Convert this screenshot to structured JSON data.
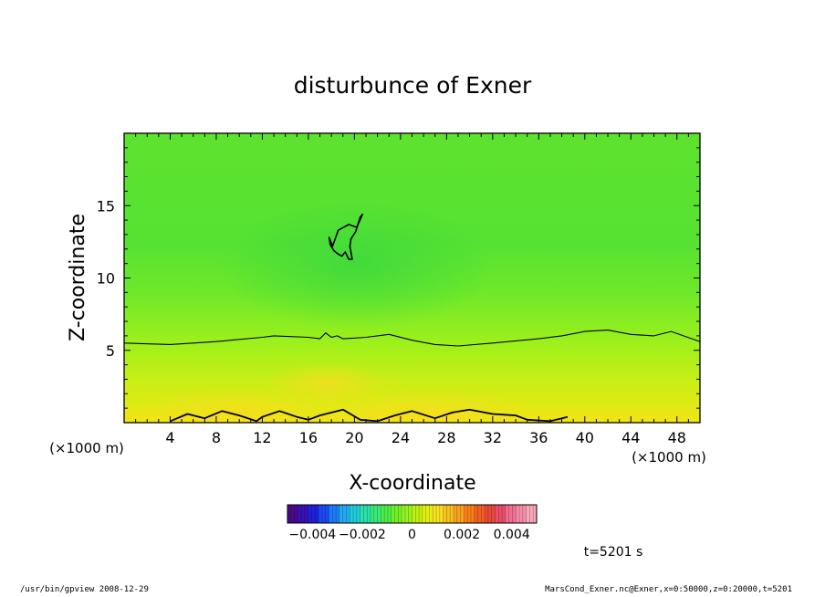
{
  "chart_data": {
    "type": "heatmap",
    "title": "disturbunce of Exner",
    "xlabel": "X-coordinate",
    "ylabel": "Z-coordinate",
    "x_unit_left": "(×1000 m)",
    "x_unit_right": "(×1000 m)",
    "xlim": [
      0,
      50
    ],
    "ylim": [
      0,
      20
    ],
    "xticks": [
      4,
      8,
      12,
      16,
      20,
      24,
      28,
      32,
      36,
      40,
      44,
      48
    ],
    "yticks": [
      5,
      10,
      15
    ],
    "contour_levels": [
      0,
      0.001,
      0.002
    ],
    "contour_mid": {
      "x": [
        0,
        4,
        8,
        12,
        13,
        16,
        17,
        17.5,
        18,
        18.5,
        19,
        21,
        23,
        25,
        27,
        29,
        32,
        36,
        38,
        40,
        42,
        44,
        46,
        47.5,
        50
      ],
      "z": [
        5.5,
        5.4,
        5.6,
        5.9,
        6.0,
        5.9,
        5.8,
        6.2,
        5.9,
        6.0,
        5.8,
        5.9,
        6.1,
        5.7,
        5.4,
        5.3,
        5.5,
        5.8,
        6.0,
        6.3,
        6.4,
        6.1,
        6.0,
        6.3,
        5.6
      ]
    },
    "contour_closed": {
      "x": [
        18.1,
        18.6,
        19.5,
        20.2,
        20.7,
        20.5,
        20.1,
        19.7,
        19.6,
        19.8,
        19.5,
        19.2,
        18.9,
        18.5,
        18.2,
        17.9,
        17.8,
        18.1
      ],
      "z": [
        12.2,
        13.3,
        13.7,
        13.5,
        14.4,
        14.2,
        13.2,
        12.7,
        12.2,
        11.3,
        11.3,
        11.8,
        11.5,
        11.7,
        11.9,
        12.3,
        12.8,
        12.2
      ]
    },
    "contour_bottom": {
      "x": [
        4,
        5.5,
        7,
        8.5,
        10,
        11.5,
        12,
        13.5,
        15,
        16,
        17,
        19,
        20.5,
        22,
        23.5,
        25,
        27,
        28.5,
        30,
        32,
        34,
        35,
        37,
        38.5
      ],
      "z": [
        0.1,
        0.6,
        0.3,
        0.8,
        0.5,
        0.1,
        0.4,
        0.8,
        0.4,
        0.2,
        0.5,
        0.9,
        0.2,
        0.1,
        0.5,
        0.8,
        0.3,
        0.7,
        0.9,
        0.6,
        0.5,
        0.2,
        0.1,
        0.4
      ]
    },
    "grid": false,
    "colorbar": {
      "ticks": [
        "−0.004",
        "−0.002",
        "0",
        "0.002",
        "0.004"
      ],
      "tick_values": [
        -0.004,
        -0.002,
        0,
        0.002,
        0.004
      ],
      "range": [
        -0.005,
        0.005
      ],
      "colors": [
        "#4a0a8c",
        "#3a10b4",
        "#2020d8",
        "#1c4af0",
        "#1c7cf4",
        "#22aaf0",
        "#20ccd8",
        "#28e0a8",
        "#38e878",
        "#4cec48",
        "#70f028",
        "#98f020",
        "#c0f010",
        "#e4ee10",
        "#f8e020",
        "#f8c020",
        "#f8a020",
        "#f88018",
        "#f06020",
        "#e84838",
        "#e84e68",
        "#f06e90",
        "#f48ca8",
        "#f8a8b8"
      ]
    },
    "annotation": "t=5201 s"
  },
  "footer": {
    "left": "/usr/bin/gpview   2008-12-29",
    "right": "MarsCond_Exner.nc@Exner,x=0:50000,z=0:20000,t=5201"
  }
}
